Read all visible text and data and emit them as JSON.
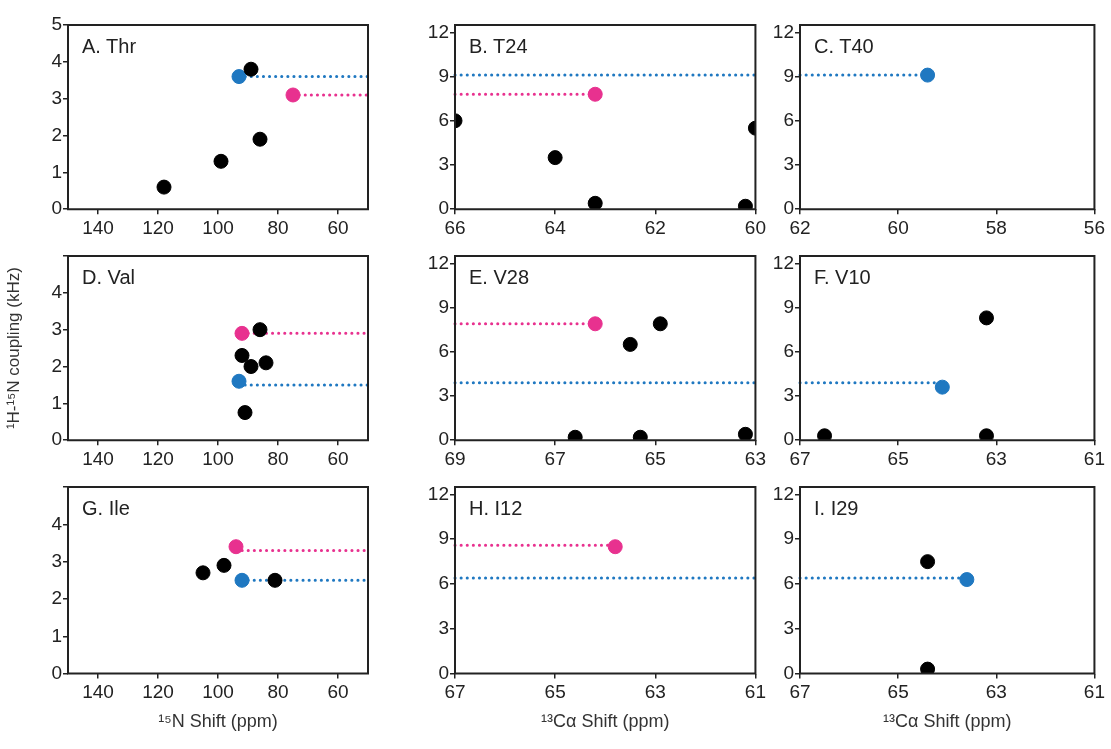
{
  "chart_data": [
    {
      "type": "scatter",
      "title": "A. Thr",
      "xlim": [
        150,
        50
      ],
      "xticks": [
        140,
        120,
        100,
        80,
        60
      ],
      "ylim": [
        0,
        5
      ],
      "yticks": [
        0,
        1,
        2,
        3,
        4,
        5
      ],
      "marker": "circle",
      "ref_lines": [
        {
          "axis": "y",
          "value": 3.6,
          "color": "#1f78c1",
          "line_style": "dotted"
        },
        {
          "axis": "y",
          "value": 3.1,
          "color": "#e8318f",
          "line_style": "dotted"
        }
      ],
      "series": [
        {
          "color": "#000000",
          "x": [
            89,
            99,
            118,
            86
          ],
          "values": [
            3.8,
            1.3,
            0.6,
            1.9
          ]
        },
        {
          "color": "#e8318f",
          "x": [
            75
          ],
          "values": [
            3.1
          ]
        },
        {
          "color": "#1f78c1",
          "x": [
            93
          ],
          "values": [
            3.6
          ]
        }
      ]
    },
    {
      "type": "scatter",
      "title": "B. T24",
      "xlim": [
        66,
        60
      ],
      "xticks": [
        66,
        64,
        62,
        60
      ],
      "ylim": [
        0,
        12.5
      ],
      "yticks": [
        0,
        3,
        6,
        9,
        12
      ],
      "marker": "circle",
      "ref_lines": [
        {
          "axis": "y",
          "value": 9.1,
          "color": "#1f78c1",
          "line_style": "dotted"
        },
        {
          "axis": "y",
          "value": 7.8,
          "color": "#e8318f",
          "line_style": "dotted"
        }
      ],
      "series": [
        {
          "color": "#000000",
          "x": [
            66,
            64,
            63.2,
            60.2,
            60
          ],
          "values": [
            6,
            3.5,
            0.4,
            0.2,
            5.5
          ]
        },
        {
          "color": "#e8318f",
          "x": [
            63.2
          ],
          "values": [
            7.8
          ]
        }
      ]
    },
    {
      "type": "scatter",
      "title": "C. T40",
      "xlim": [
        62,
        56
      ],
      "xticks": [
        62,
        60,
        58,
        56
      ],
      "ylim": [
        0,
        12.5
      ],
      "yticks": [
        0,
        3,
        6,
        9,
        12
      ],
      "marker": "circle",
      "ref_lines": [
        {
          "axis": "y",
          "value": 9.1,
          "color": "#1f78c1",
          "line_style": "dotted"
        }
      ],
      "series": [
        {
          "color": "#1f78c1",
          "x": [
            59.4
          ],
          "values": [
            9.1
          ]
        }
      ]
    },
    {
      "type": "scatter",
      "title": "D. Val",
      "ylabel": "¹H-¹⁵N coupling (kHz)",
      "xlim": [
        150,
        50
      ],
      "xticks": [
        140,
        120,
        100,
        80,
        60
      ],
      "ylim": [
        0,
        5
      ],
      "yticks": [
        0,
        1,
        2,
        3,
        4,
        {
          "value": 5,
          "label": null
        }
      ],
      "marker": "circle",
      "ref_lines": [
        {
          "axis": "y",
          "value": 2.9,
          "color": "#e8318f",
          "line_style": "dotted"
        },
        {
          "axis": "y",
          "value": 1.5,
          "color": "#1f78c1",
          "line_style": "dotted"
        }
      ],
      "series": [
        {
          "color": "#000000",
          "x": [
            86,
            92,
            89,
            84,
            91
          ],
          "values": [
            3.0,
            2.3,
            2.0,
            2.1,
            0.75
          ]
        },
        {
          "color": "#e8318f",
          "x": [
            92
          ],
          "values": [
            2.9
          ]
        },
        {
          "color": "#1f78c1",
          "x": [
            93
          ],
          "values": [
            1.6
          ]
        }
      ]
    },
    {
      "type": "scatter",
      "title": "E. V28",
      "xlim": [
        69,
        63
      ],
      "xticks": [
        69,
        67,
        65,
        63
      ],
      "ylim": [
        0,
        12.5
      ],
      "yticks": [
        0,
        3,
        6,
        9,
        12
      ],
      "marker": "circle",
      "ref_lines": [
        {
          "axis": "y",
          "value": 7.9,
          "color": "#e8318f",
          "line_style": "dotted"
        },
        {
          "axis": "y",
          "value": 3.9,
          "color": "#1f78c1",
          "line_style": "dotted"
        }
      ],
      "series": [
        {
          "color": "#000000",
          "x": [
            65.5,
            64.9,
            66.6,
            65.3,
            63.2
          ],
          "values": [
            6.5,
            7.9,
            0.2,
            0.2,
            0.4
          ]
        },
        {
          "color": "#e8318f",
          "x": [
            66.2
          ],
          "values": [
            7.9
          ]
        }
      ]
    },
    {
      "type": "scatter",
      "title": "F. V10",
      "xlim": [
        67,
        61
      ],
      "xticks": [
        67,
        65,
        63,
        61
      ],
      "ylim": [
        0,
        12.5
      ],
      "yticks": [
        0,
        3,
        6,
        9,
        12
      ],
      "marker": "circle",
      "ref_lines": [
        {
          "axis": "y",
          "value": 3.9,
          "color": "#1f78c1",
          "line_style": "dotted"
        }
      ],
      "series": [
        {
          "color": "#000000",
          "x": [
            63.2,
            66.5,
            63.2
          ],
          "values": [
            8.3,
            0.3,
            0.3
          ]
        },
        {
          "color": "#1f78c1",
          "x": [
            64.1
          ],
          "values": [
            3.6
          ]
        }
      ]
    },
    {
      "type": "scatter",
      "title": "G. Ile",
      "xlabel": "¹⁵N Shift (ppm)",
      "xlim": [
        150,
        50
      ],
      "xticks": [
        140,
        120,
        100,
        80,
        60
      ],
      "ylim": [
        0,
        5
      ],
      "yticks": [
        0,
        1,
        2,
        3,
        4,
        {
          "value": 5,
          "label": null
        }
      ],
      "marker": "circle",
      "ref_lines": [
        {
          "axis": "y",
          "value": 3.3,
          "color": "#e8318f",
          "line_style": "dotted"
        },
        {
          "axis": "y",
          "value": 2.5,
          "color": "#1f78c1",
          "line_style": "dotted"
        }
      ],
      "series": [
        {
          "color": "#000000",
          "x": [
            98,
            105,
            81
          ],
          "values": [
            2.9,
            2.7,
            2.5
          ]
        },
        {
          "color": "#e8318f",
          "x": [
            94
          ],
          "values": [
            3.4
          ]
        },
        {
          "color": "#1f78c1",
          "x": [
            92
          ],
          "values": [
            2.5
          ]
        }
      ]
    },
    {
      "type": "scatter",
      "title": "H. I12",
      "xlabel": "¹³Cα Shift (ppm)",
      "xlim": [
        67,
        61
      ],
      "xticks": [
        67,
        65,
        63,
        61
      ],
      "ylim": [
        0,
        12.5
      ],
      "yticks": [
        0,
        3,
        6,
        9,
        12
      ],
      "marker": "circle",
      "ref_lines": [
        {
          "axis": "y",
          "value": 8.6,
          "color": "#e8318f",
          "line_style": "dotted"
        },
        {
          "axis": "y",
          "value": 6.4,
          "color": "#1f78c1",
          "line_style": "dotted"
        }
      ],
      "series": [
        {
          "color": "#e8318f",
          "x": [
            63.8
          ],
          "values": [
            8.5
          ]
        }
      ]
    },
    {
      "type": "scatter",
      "title": "I. I29",
      "xlabel": "¹³Cα Shift (ppm)",
      "xlim": [
        67,
        61
      ],
      "xticks": [
        67,
        65,
        63,
        61
      ],
      "ylim": [
        0,
        12.5
      ],
      "yticks": [
        0,
        3,
        6,
        9,
        12
      ],
      "marker": "circle",
      "ref_lines": [
        {
          "axis": "y",
          "value": 6.4,
          "color": "#1f78c1",
          "line_style": "dotted"
        }
      ],
      "series": [
        {
          "color": "#000000",
          "x": [
            64.4,
            64.4
          ],
          "values": [
            7.5,
            0.3
          ]
        },
        {
          "color": "#1f78c1",
          "x": [
            63.6
          ],
          "values": [
            6.3
          ]
        }
      ]
    }
  ]
}
